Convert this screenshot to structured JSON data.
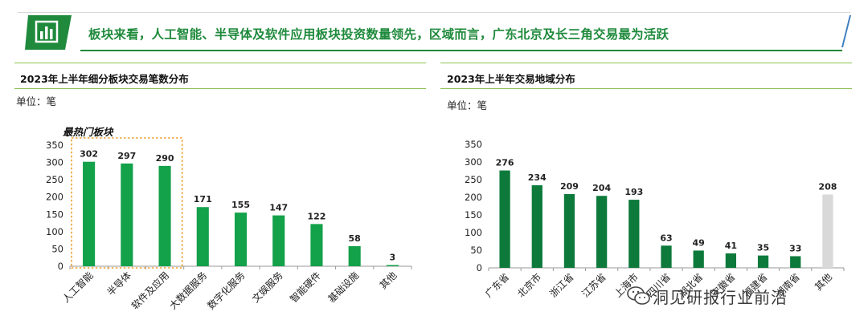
{
  "header": {
    "title": "板块来看，人工智能、半导体及软件应用板块投资数量领先，区域而言，广东北京及长三角交易最为活跃",
    "accent_color": "#1f8a3c",
    "icon": "bar-chart-icon"
  },
  "left_panel": {
    "title": "2023年上半年细分板块交易笔数分布",
    "unit": "单位：笔",
    "highlight_label": "最热门板块"
  },
  "right_panel": {
    "title": "2023年上半年交易地域分布",
    "unit": "单位：笔"
  },
  "watermark": {
    "text": "洞见研报行业前沿",
    "icon": "wechat-icon"
  },
  "chart_data": [
    {
      "type": "bar",
      "title": "2023年上半年细分板块交易笔数分布",
      "categories": [
        "人工智能",
        "半导体",
        "软件及应用",
        "大数据服务",
        "数字化服务",
        "文娱服务",
        "智能硬件",
        "基础设施",
        "其他"
      ],
      "values": [
        302,
        297,
        290,
        171,
        155,
        147,
        122,
        58,
        3
      ],
      "ylim": [
        0,
        350
      ],
      "yticks": [
        0,
        50,
        100,
        150,
        200,
        250,
        300,
        350
      ],
      "grid": false,
      "color": "#13a14a",
      "highlight": {
        "label": "最热门板块",
        "categories": [
          "人工智能",
          "半导体",
          "软件及应用"
        ],
        "border_color": "#f0a030"
      }
    },
    {
      "type": "bar",
      "title": "2023年上半年交易地域分布",
      "categories": [
        "广东省",
        "北京市",
        "浙江省",
        "江苏省",
        "上海市",
        "四川省",
        "湖北省",
        "安徽省",
        "福建省",
        "湖南省",
        "其他"
      ],
      "categories_partially_obscured": [
        false,
        false,
        false,
        false,
        false,
        true,
        true,
        true,
        true,
        true,
        false
      ],
      "values": [
        276,
        234,
        209,
        204,
        193,
        63,
        49,
        41,
        35,
        33,
        208
      ],
      "ylim": [
        0,
        350
      ],
      "yticks": [
        0,
        50,
        100,
        150,
        200,
        250,
        300,
        350
      ],
      "grid": false,
      "colors": [
        "#0d7a3c",
        "#0d7a3c",
        "#0d7a3c",
        "#0d7a3c",
        "#0d7a3c",
        "#0d7a3c",
        "#0d7a3c",
        "#0d7a3c",
        "#0d7a3c",
        "#0d7a3c",
        "#d9d9d9"
      ]
    }
  ]
}
